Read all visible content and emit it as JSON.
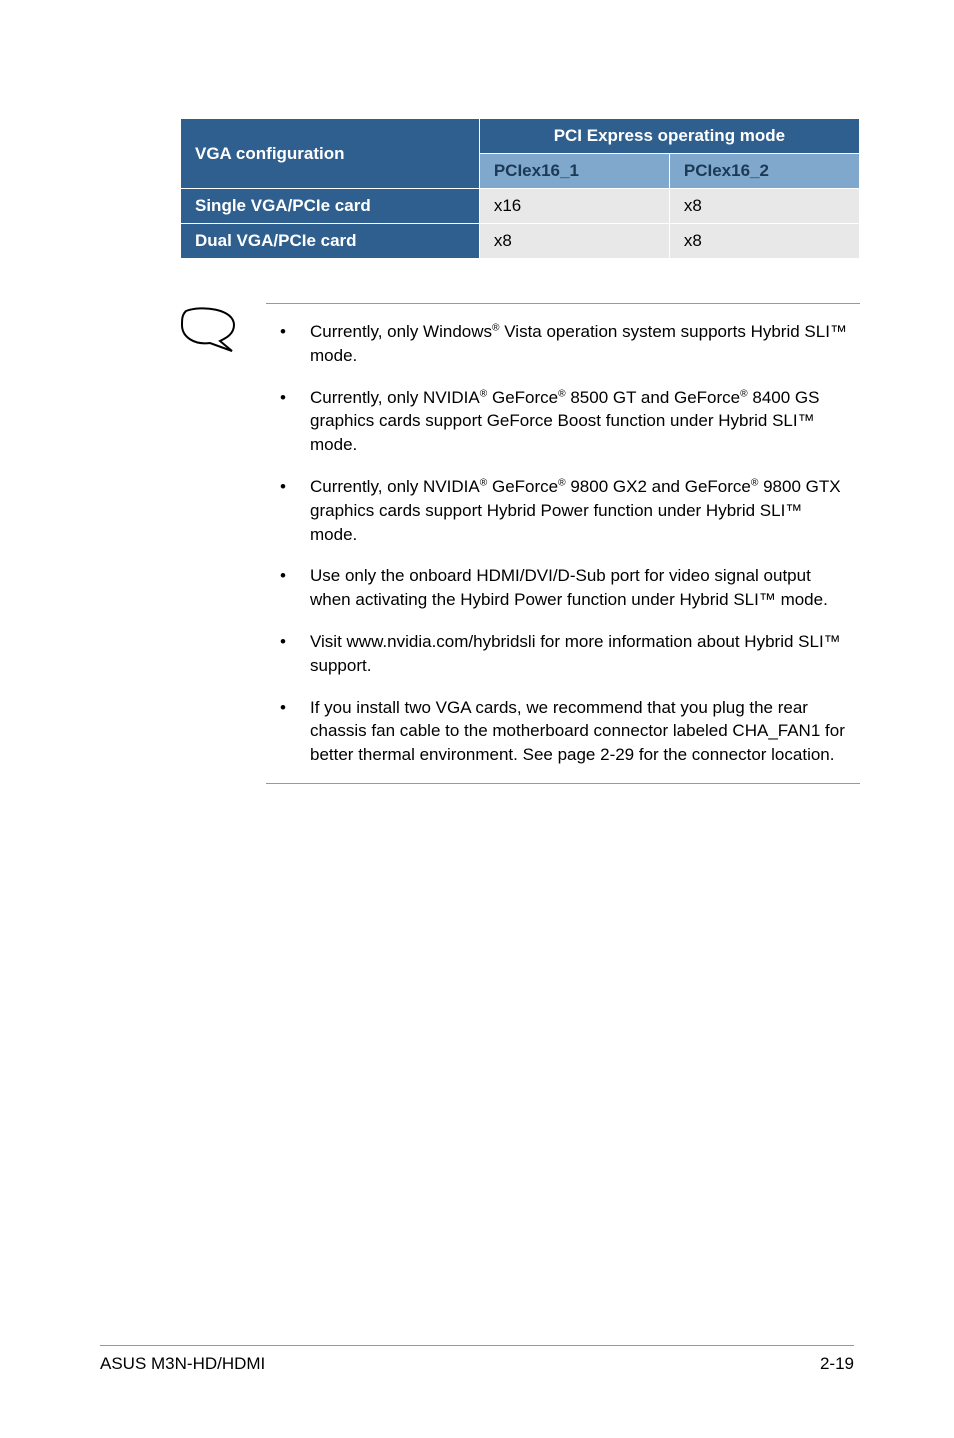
{
  "table": {
    "col_vga": "VGA configuration",
    "col_mode": "PCI Express operating mode",
    "col_p1": "PCIex16_1",
    "col_p2": "PCIex16_2",
    "rows": [
      {
        "label": "Single VGA/PCIe card",
        "p1": "x16",
        "p2": "x8"
      },
      {
        "label": "Dual VGA/PCIe card",
        "p1": "x8",
        "p2": "x8"
      }
    ],
    "header_bg": "#2f5f8f",
    "header_fg": "#ffffff",
    "subheader_bg": "#7fa8cc",
    "subheader_fg": "#1c3a56",
    "cell_bg": "#e8e8e8"
  },
  "notes": {
    "items": [
      {
        "html": "Currently, only Windows<sup>®</sup> Vista operation system supports Hybrid SLI™ mode."
      },
      {
        "html": "Currently, only NVIDIA<sup>®</sup> GeForce<sup>®</sup> 8500 GT and GeForce<sup>®</sup> 8400 GS graphics cards support GeForce Boost function under Hybrid SLI™ mode."
      },
      {
        "html": "Currently, only NVIDIA<sup>®</sup> GeForce<sup>®</sup> 9800 GX2 and GeForce<sup>®</sup> 9800 GTX graphics cards support Hybrid Power function under Hybrid SLI™ mode."
      },
      {
        "html": "Use only the onboard HDMI/DVI/D-Sub port for video signal output when activating the Hybird Power function under Hybrid SLI™ mode."
      },
      {
        "html": "Visit www.nvidia.com/hybridsli for more information about Hybrid SLI™ support."
      },
      {
        "html": "If you install two VGA cards, we recommend that you plug the rear chassis fan cable to the motherboard connector labeled CHA_FAN1 for better thermal environment. See page 2-29 for the connector location."
      }
    ]
  },
  "footer": {
    "left": "ASUS M3N-HD/HDMI",
    "right": "2-19"
  }
}
